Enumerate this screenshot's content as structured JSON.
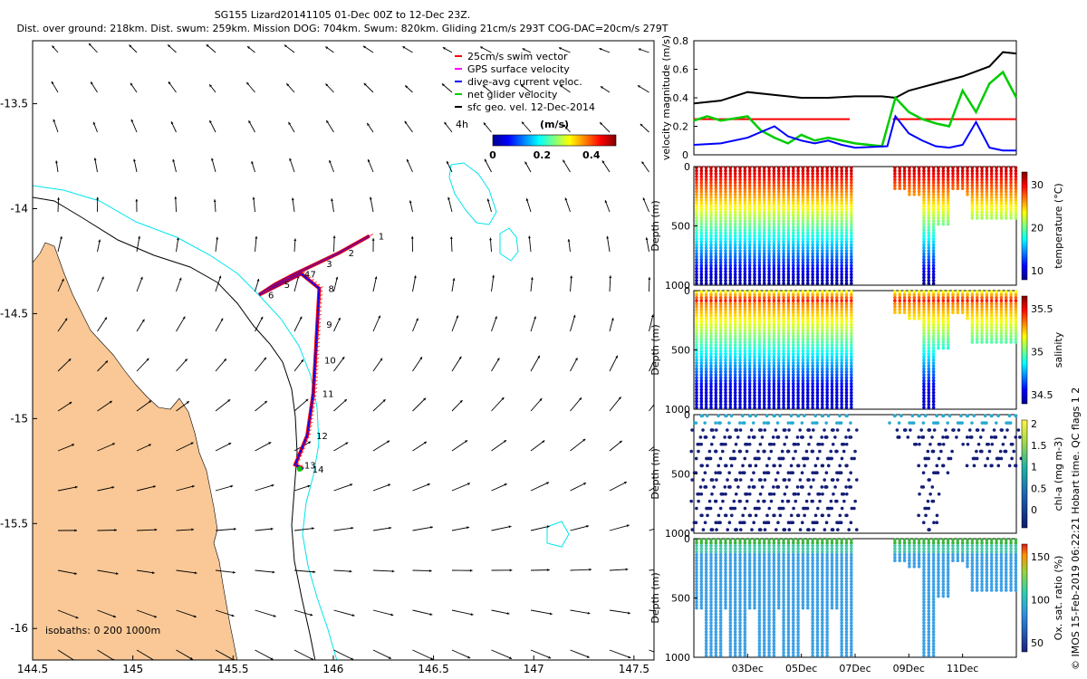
{
  "header": {
    "title": "SG155 Lizard20141105 01-Dec 00Z to 12-Dec 23Z.",
    "subtitle": "Dist. over ground: 218km. Dist. swum: 259km. Mission DOG: 704km. Swum: 820km. Gliding 21cm/s 293T COG-DAC=20cm/s 279T"
  },
  "footer_credit": "© IMOS 15-Feb-2019 06:22:21 Hobart time. QC flags 1  2",
  "colors": {
    "land": "#f9c896",
    "isobath_200": "#00e5ee",
    "isobath_1000": "#000000",
    "track_swim": "#ff0000",
    "track_dac": "#0000ff",
    "net_velocity": "#00cc00",
    "vel_black": "#000000"
  },
  "chart_data": [
    {
      "type": "map",
      "xlim": [
        144.5,
        147.6
      ],
      "ylim": [
        -16.15,
        -13.2
      ],
      "x_ticks": [
        "144.5",
        "145",
        "145.5",
        "146",
        "146.5",
        "147",
        "147.5"
      ],
      "y_ticks": [
        "-13.5",
        "-14",
        "-14.5",
        "-15",
        "-15.5",
        "-16"
      ],
      "legend": {
        "items": [
          "25cm/s swim vector",
          "GPS surface velocity",
          "dive-avg current veloc.",
          "net glider velocity",
          "sfc geo. vel. 12-Dec-2014"
        ],
        "item_colors": [
          "#ff0000",
          "#ff00ff",
          "#0000ff",
          "#00cc00",
          "#000000"
        ],
        "time_label": "4h",
        "colorbar_title": "(m/s)",
        "colorbar_ticks": [
          "0",
          "0.2",
          "0.4"
        ],
        "colorbar_range": [
          0,
          0.5
        ]
      },
      "isobath_label": "isobaths: 0   200  1000m",
      "track": [
        {
          "lon": 146.18,
          "lat": -14.13,
          "label": "1"
        },
        {
          "lon": 146.03,
          "lat": -14.21,
          "label": "2"
        },
        {
          "lon": 145.92,
          "lat": -14.26,
          "label": "3"
        },
        {
          "lon": 145.81,
          "lat": -14.31,
          "label": "4"
        },
        {
          "lon": 145.71,
          "lat": -14.36,
          "label": "5"
        },
        {
          "lon": 145.63,
          "lat": -14.41,
          "label": "6"
        },
        {
          "lon": 145.84,
          "lat": -14.31,
          "label": "7"
        },
        {
          "lon": 145.93,
          "lat": -14.38,
          "label": "8"
        },
        {
          "lon": 145.92,
          "lat": -14.55,
          "label": "9"
        },
        {
          "lon": 145.91,
          "lat": -14.72,
          "label": "10"
        },
        {
          "lon": 145.9,
          "lat": -14.88,
          "label": "11"
        },
        {
          "lon": 145.87,
          "lat": -15.08,
          "label": "12"
        },
        {
          "lon": 145.81,
          "lat": -15.22,
          "label": "13"
        },
        {
          "lon": 145.85,
          "lat": -15.24,
          "label": "14"
        }
      ]
    },
    {
      "type": "line",
      "ylabel": "velocity magnitude (m/s)",
      "ylim": [
        0,
        0.8
      ],
      "y_ticks": [
        "0",
        "0.2",
        "0.4",
        "0.6",
        "0.8"
      ],
      "xlim": [
        1,
        13
      ],
      "series": [
        {
          "color": "#000000",
          "x": [
            1,
            2,
            3,
            4,
            5,
            6,
            7,
            8,
            8.5,
            9,
            10,
            11,
            12,
            12.5,
            13
          ],
          "values": [
            0.36,
            0.38,
            0.44,
            0.42,
            0.4,
            0.4,
            0.41,
            0.41,
            0.4,
            0.45,
            0.5,
            0.55,
            0.62,
            0.72,
            0.71
          ]
        },
        {
          "color": "#ff0000",
          "x": [
            1,
            6.8,
            null,
            8.4,
            13
          ],
          "values": [
            0.25,
            0.25,
            null,
            0.25,
            0.25
          ]
        },
        {
          "color": "#00cc00",
          "x": [
            1,
            1.5,
            2,
            3,
            3.5,
            4,
            4.5,
            5,
            5.5,
            6,
            6.5,
            7,
            8,
            8.5,
            9,
            9.5,
            10,
            10.5,
            11,
            11.5,
            12,
            12.5,
            13
          ],
          "values": [
            0.24,
            0.27,
            0.24,
            0.27,
            0.17,
            0.12,
            0.08,
            0.14,
            0.1,
            0.12,
            0.1,
            0.08,
            0.06,
            0.4,
            0.3,
            0.25,
            0.22,
            0.2,
            0.45,
            0.3,
            0.5,
            0.58,
            0.4
          ]
        },
        {
          "color": "#0000ff",
          "x": [
            1,
            2,
            3,
            4,
            4.5,
            5,
            5.5,
            6,
            6.5,
            7,
            8.2,
            8.5,
            9,
            9.5,
            10,
            10.5,
            11,
            11.5,
            12,
            12.5,
            13
          ],
          "values": [
            0.07,
            0.08,
            0.12,
            0.2,
            0.13,
            0.1,
            0.08,
            0.1,
            0.07,
            0.05,
            0.06,
            0.27,
            0.15,
            0.1,
            0.06,
            0.05,
            0.07,
            0.23,
            0.05,
            0.03,
            0.03
          ]
        }
      ]
    },
    {
      "type": "scatter",
      "variable": "temperature",
      "ylabel": "Depth (m)",
      "colorbar_label": "temperature (°C)",
      "colorbar_ticks": [
        "30",
        "20",
        "10"
      ],
      "y_ticks": [
        "0",
        "500",
        "1000"
      ],
      "ylim": [
        0,
        1000
      ]
    },
    {
      "type": "scatter",
      "variable": "salinity",
      "ylabel": "Depth (m)",
      "colorbar_label": "salinity",
      "colorbar_ticks": [
        "35.5",
        "35",
        "34.5"
      ],
      "y_ticks": [
        "0",
        "500",
        "1000"
      ],
      "ylim": [
        0,
        1000
      ]
    },
    {
      "type": "scatter",
      "variable": "chl-a",
      "ylabel": "Depth (m)",
      "colorbar_label": "chl-a (mg m-3)",
      "colorbar_ticks": [
        "2",
        "1.5",
        "1",
        "0.5",
        "0"
      ],
      "y_ticks": [
        "0",
        "500",
        "1000"
      ],
      "ylim": [
        0,
        1000
      ]
    },
    {
      "type": "scatter",
      "variable": "oxygen saturation",
      "ylabel": "Depth (m)",
      "colorbar_label": "Ox. sat. ratio (%)",
      "colorbar_ticks": [
        "150",
        "100",
        "50"
      ],
      "y_ticks": [
        "0",
        "500",
        "1000"
      ],
      "ylim": [
        0,
        1000
      ],
      "x_ticks": [
        "03Dec",
        "05Dec",
        "07Dec",
        "09Dec",
        "11Dec"
      ]
    }
  ]
}
